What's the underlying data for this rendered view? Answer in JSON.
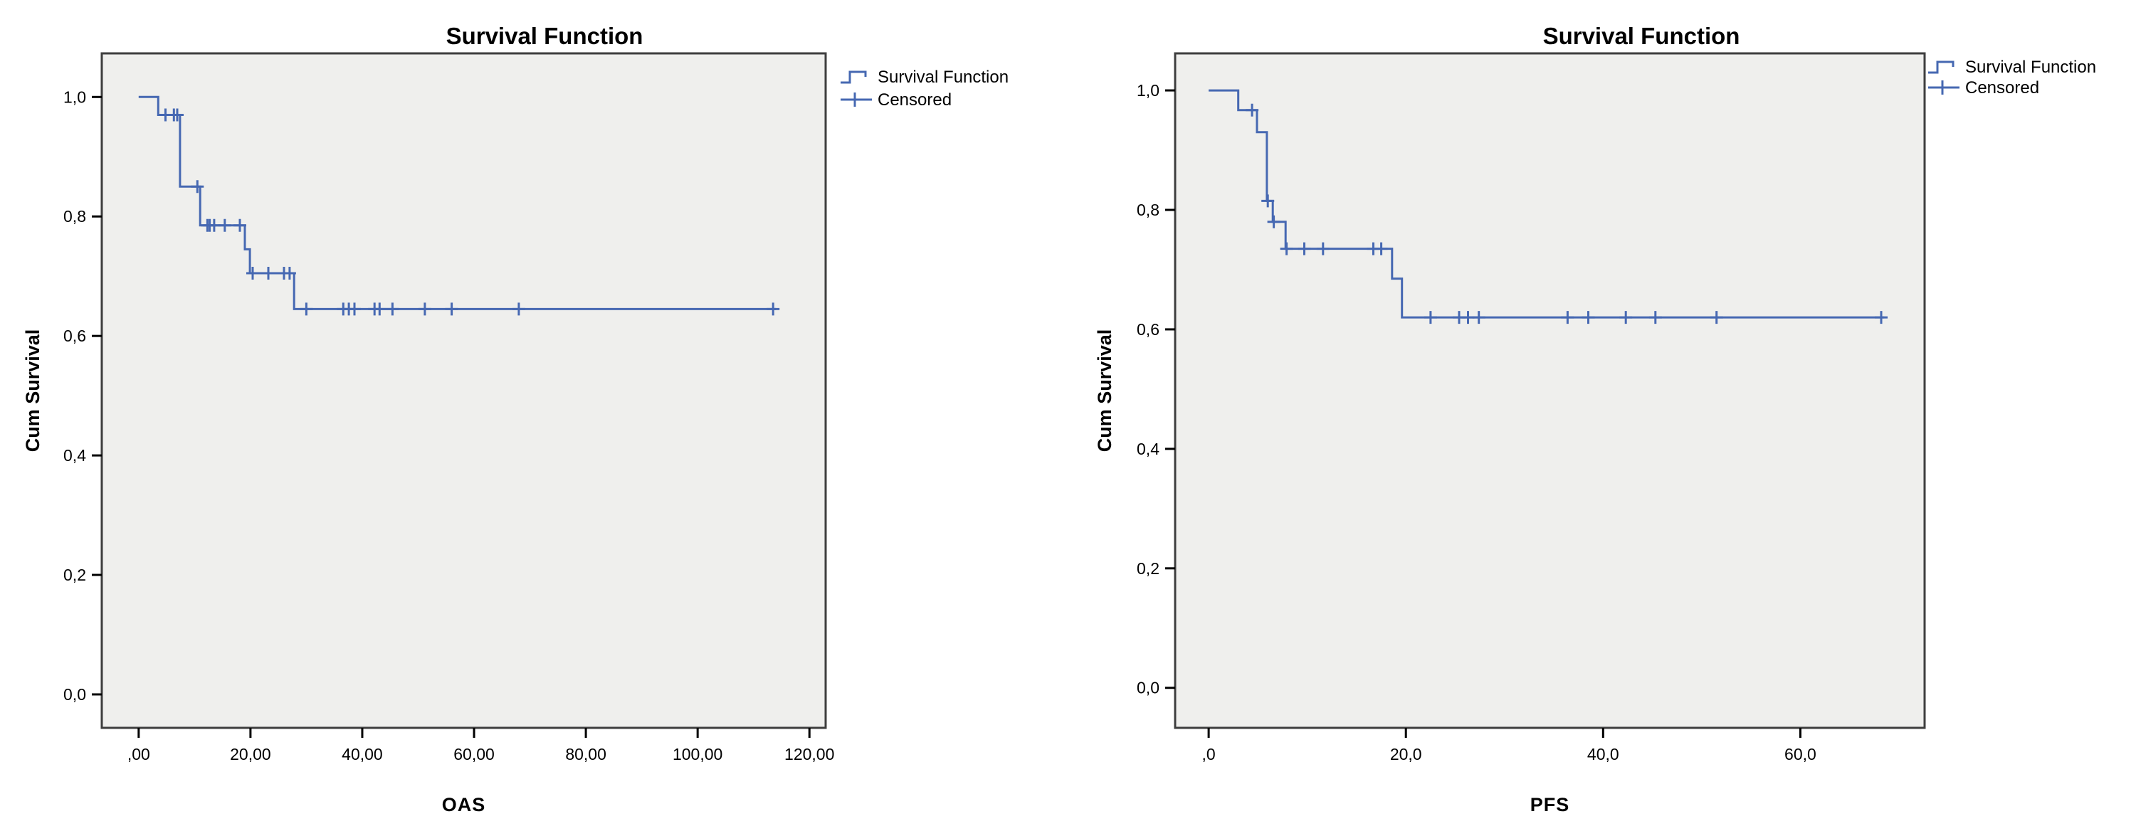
{
  "styles": {
    "line_color": "#4668B2",
    "plot_bg": "#EFEFED",
    "frame_color": "#3E3E3E",
    "text_color": "#000000",
    "page_bg": "#FFFFFF"
  },
  "chart_data": [
    {
      "type": "line",
      "subtype": "kaplan_meier_step",
      "title": "Survival Function",
      "xlabel": "OAS",
      "ylabel": "Cum Survival",
      "legend": [
        {
          "symbol": "step-line",
          "label": "Survival Function"
        },
        {
          "symbol": "plus",
          "label": "Censored"
        }
      ],
      "legend_position": "top-right-outside",
      "grid": false,
      "xlim": [
        -6.6,
        122.9
      ],
      "ylim": [
        -0.056,
        1.073
      ],
      "x_ticks": [
        {
          "value": 0,
          "label": ",00"
        },
        {
          "value": 20,
          "label": "20,00"
        },
        {
          "value": 40,
          "label": "40,00"
        },
        {
          "value": 60,
          "label": "60,00"
        },
        {
          "value": 80,
          "label": "80,00"
        },
        {
          "value": 100,
          "label": "100,00"
        },
        {
          "value": 120,
          "label": "120,00"
        }
      ],
      "y_ticks": [
        {
          "value": 0.0,
          "label": "0,0"
        },
        {
          "value": 0.2,
          "label": "0,2"
        },
        {
          "value": 0.4,
          "label": "0,4"
        },
        {
          "value": 0.6,
          "label": "0,6"
        },
        {
          "value": 0.8,
          "label": "0,8"
        },
        {
          "value": 1.0,
          "label": "1,0"
        }
      ],
      "survival_steps": [
        [
          0,
          1.0
        ],
        [
          3.5,
          1.0
        ],
        [
          3.5,
          0.97
        ],
        [
          7.4,
          0.97
        ],
        [
          7.4,
          0.85
        ],
        [
          11.0,
          0.85
        ],
        [
          11.0,
          0.785
        ],
        [
          19.0,
          0.785
        ],
        [
          19.0,
          0.745
        ],
        [
          19.9,
          0.745
        ],
        [
          19.9,
          0.705
        ],
        [
          27.8,
          0.705
        ],
        [
          27.8,
          0.645
        ],
        [
          114.0,
          0.645
        ]
      ],
      "censored_points": [
        [
          4.8,
          0.97
        ],
        [
          6.3,
          0.97
        ],
        [
          6.9,
          0.97
        ],
        [
          10.5,
          0.85
        ],
        [
          12.3,
          0.785
        ],
        [
          12.7,
          0.785
        ],
        [
          13.5,
          0.785
        ],
        [
          15.4,
          0.785
        ],
        [
          18.1,
          0.785
        ],
        [
          20.4,
          0.705
        ],
        [
          23.2,
          0.705
        ],
        [
          26.0,
          0.705
        ],
        [
          27.0,
          0.705
        ],
        [
          30.0,
          0.645
        ],
        [
          36.6,
          0.645
        ],
        [
          37.6,
          0.645
        ],
        [
          38.6,
          0.645
        ],
        [
          42.2,
          0.645
        ],
        [
          43.1,
          0.645
        ],
        [
          45.4,
          0.645
        ],
        [
          51.2,
          0.645
        ],
        [
          56.0,
          0.645
        ],
        [
          68.0,
          0.645
        ],
        [
          113.5,
          0.645
        ]
      ]
    },
    {
      "type": "line",
      "subtype": "kaplan_meier_step",
      "title": "Survival Function",
      "xlabel": "PFS",
      "ylabel": "Cum Survival",
      "legend": [
        {
          "symbol": "step-line",
          "label": "Survival Function"
        },
        {
          "symbol": "plus",
          "label": "Censored"
        }
      ],
      "legend_position": "top-right-outside",
      "grid": false,
      "xlim": [
        -3.4,
        72.6
      ],
      "ylim": [
        -0.067,
        1.062
      ],
      "x_ticks": [
        {
          "value": 0,
          "label": ",0"
        },
        {
          "value": 20,
          "label": "20,0"
        },
        {
          "value": 40,
          "label": "40,0"
        },
        {
          "value": 60,
          "label": "60,0"
        }
      ],
      "y_ticks": [
        {
          "value": 0.0,
          "label": "0,0"
        },
        {
          "value": 0.2,
          "label": "0,2"
        },
        {
          "value": 0.4,
          "label": "0,4"
        },
        {
          "value": 0.6,
          "label": "0,6"
        },
        {
          "value": 0.8,
          "label": "0,8"
        },
        {
          "value": 1.0,
          "label": "1,0"
        }
      ],
      "survival_steps": [
        [
          0,
          1.0
        ],
        [
          3.0,
          1.0
        ],
        [
          3.0,
          0.967
        ],
        [
          4.9,
          0.967
        ],
        [
          4.9,
          0.93
        ],
        [
          5.9,
          0.93
        ],
        [
          5.9,
          0.815
        ],
        [
          6.5,
          0.815
        ],
        [
          6.5,
          0.78
        ],
        [
          7.8,
          0.78
        ],
        [
          7.8,
          0.735
        ],
        [
          18.6,
          0.735
        ],
        [
          18.6,
          0.685
        ],
        [
          19.6,
          0.685
        ],
        [
          19.6,
          0.62
        ],
        [
          68.5,
          0.62
        ]
      ],
      "censored_points": [
        [
          4.4,
          0.967
        ],
        [
          6.0,
          0.815
        ],
        [
          6.6,
          0.78
        ],
        [
          7.9,
          0.735
        ],
        [
          9.7,
          0.735
        ],
        [
          11.6,
          0.735
        ],
        [
          16.7,
          0.735
        ],
        [
          17.5,
          0.735
        ],
        [
          22.5,
          0.62
        ],
        [
          25.4,
          0.62
        ],
        [
          26.3,
          0.62
        ],
        [
          27.4,
          0.62
        ],
        [
          36.4,
          0.62
        ],
        [
          38.5,
          0.62
        ],
        [
          42.3,
          0.62
        ],
        [
          45.3,
          0.62
        ],
        [
          51.5,
          0.62
        ],
        [
          68.2,
          0.62
        ]
      ]
    }
  ]
}
